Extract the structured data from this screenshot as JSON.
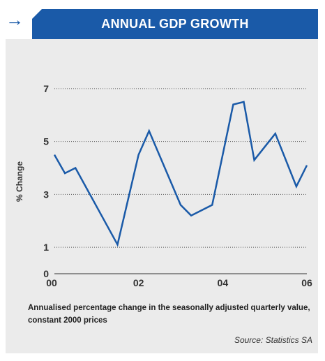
{
  "header": {
    "arrow_icon": "right-arrow-icon",
    "title": "ANNUAL GDP GROWTH"
  },
  "colors": {
    "accent": "#1a5aa8",
    "panel": "#ebebeb"
  },
  "chart_data": {
    "type": "line",
    "title": "ANNUAL GDP GROWTH",
    "ylabel": "% Change",
    "xlabel": "",
    "ylim": [
      0,
      7.5
    ],
    "yticks": [
      0,
      1,
      3,
      5,
      7
    ],
    "xlim": [
      0,
      6
    ],
    "xticks": [
      {
        "value": 0,
        "label": "00"
      },
      {
        "value": 2,
        "label": "02"
      },
      {
        "value": 4,
        "label": "04"
      },
      {
        "value": 6,
        "label": "06"
      }
    ],
    "grid": "dotted-horizontal",
    "series": [
      {
        "x": [
          0,
          0.25,
          0.5,
          1.5,
          2.0,
          2.25,
          3.0,
          3.25,
          3.75,
          4.25,
          4.5,
          4.75,
          5.25,
          5.75,
          6.0
        ],
        "y": [
          4.5,
          3.8,
          4.0,
          1.1,
          4.5,
          5.4,
          2.6,
          2.2,
          2.6,
          6.4,
          6.5,
          4.3,
          5.3,
          3.3,
          4.1
        ]
      }
    ]
  },
  "caption": "Annualised percentage change in the seasonally adjusted quarterly value, constant 2000 prices",
  "source": "Source: Statistics SA"
}
